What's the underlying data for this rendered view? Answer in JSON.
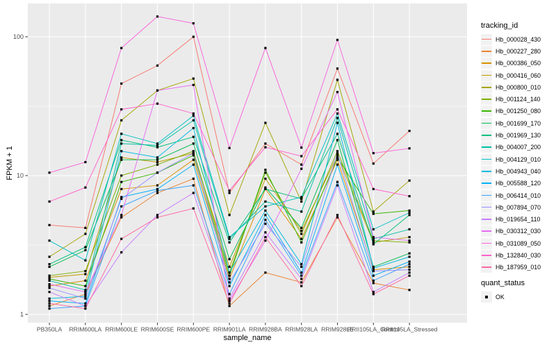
{
  "chart_data": {
    "type": "line",
    "xlabel": "sample_name",
    "ylabel": "FPKM + 1",
    "y_scale": "log10",
    "y_ticks": [
      1,
      10,
      100
    ],
    "y_minor_ticks": [
      3.1623,
      31.623
    ],
    "ylim": [
      0.87,
      174
    ],
    "grid": true,
    "panel_color": "#EBEBEB",
    "grid_color": "#FFFFFF",
    "tick_label_color": "#4D4D4D",
    "point_marker": "black-square",
    "categories": [
      "PB350LA",
      "RRIM600LA",
      "RRIM600LE",
      "RRIM600SE",
      "RRIM600PE",
      "RRIM901LA",
      "RRIM928BA",
      "RRIM928LA",
      "RRIM928LE",
      "RRII105LA_Control",
      "RRII105LA_Stressed"
    ],
    "legend": {
      "title": "tracking_id",
      "position": "right"
    },
    "legend2": {
      "title": "quant_status",
      "items": [
        {
          "label": "OK",
          "marker": "black-square"
        }
      ]
    },
    "series": [
      {
        "name": "Hb_000028_430",
        "color": "#F8766D",
        "values": [
          4.4,
          4.2,
          46,
          62,
          100,
          7.5,
          17,
          12,
          59,
          12.2,
          21
        ]
      },
      {
        "name": "Hb_000227_280",
        "color": "#EA8331",
        "values": [
          1.15,
          1.4,
          5.0,
          7.5,
          9.5,
          1.15,
          2.0,
          1.7,
          5.0,
          1.68,
          1.5
        ]
      },
      {
        "name": "Hb_000386_050",
        "color": "#D89000",
        "values": [
          1.6,
          1.75,
          8.0,
          8.5,
          13,
          1.8,
          8.0,
          3.5,
          13,
          2.1,
          2.2
        ]
      },
      {
        "name": "Hb_000416_060",
        "color": "#C09B00",
        "values": [
          1.85,
          1.95,
          13.5,
          12.5,
          14.5,
          2.2,
          9.5,
          4.0,
          14,
          3.3,
          3.6
        ]
      },
      {
        "name": "Hb_000800_010",
        "color": "#A3A500",
        "values": [
          2.6,
          3.8,
          25,
          41,
          50,
          5.2,
          24,
          6.5,
          49,
          5.5,
          9.2
        ]
      },
      {
        "name": "Hb_001124_140",
        "color": "#7CAE00",
        "values": [
          1.9,
          2.05,
          10,
          12,
          15,
          2.0,
          10.5,
          3.8,
          15,
          3.4,
          3.3
        ]
      },
      {
        "name": "Hb_001250_080",
        "color": "#39B600",
        "values": [
          1.8,
          1.6,
          9.0,
          10.5,
          14,
          1.9,
          11,
          3.3,
          13.5,
          5.3,
          5.6
        ]
      },
      {
        "name": "Hb_001699_170",
        "color": "#00BB4E",
        "values": [
          2.2,
          2.9,
          13,
          13,
          17,
          2.5,
          8.2,
          4.2,
          18,
          2.2,
          2.75
        ]
      },
      {
        "name": "Hb_001969_130",
        "color": "#00BF7D",
        "values": [
          2.3,
          3.05,
          18,
          16,
          19,
          3.3,
          8.0,
          6.8,
          20,
          3.2,
          5.2
        ]
      },
      {
        "name": "Hb_004007_200",
        "color": "#00C1A3",
        "values": [
          1.75,
          1.5,
          17,
          16.5,
          25,
          3.5,
          6.5,
          5.5,
          26,
          3.5,
          4.1
        ]
      },
      {
        "name": "Hb_004129_010",
        "color": "#00BFC4",
        "values": [
          3.4,
          2.45,
          20,
          17,
          27,
          3.6,
          6.0,
          7.0,
          28,
          4.1,
          5.4
        ]
      },
      {
        "name": "Hb_004943_040",
        "color": "#00BAE0",
        "values": [
          1.3,
          1.35,
          15,
          13.5,
          22,
          2.0,
          5.6,
          2.3,
          24,
          2.15,
          2.6
        ]
      },
      {
        "name": "Hb_005588_120",
        "color": "#00B0F6",
        "values": [
          1.25,
          1.2,
          7.0,
          8.0,
          12,
          1.6,
          5.2,
          2.0,
          12,
          1.9,
          2.4
        ]
      },
      {
        "name": "Hb_006414_010",
        "color": "#35A2FF",
        "values": [
          1.1,
          1.15,
          6.0,
          7.8,
          8.5,
          1.4,
          4.8,
          1.9,
          9.0,
          1.75,
          2.3
        ]
      },
      {
        "name": "Hb_007894_070",
        "color": "#9590FF",
        "values": [
          1.55,
          1.3,
          6.8,
          10.5,
          14.5,
          1.7,
          4.5,
          2.2,
          14.5,
          2.05,
          2.1
        ]
      },
      {
        "name": "Hb_019654_110",
        "color": "#C77CFF",
        "values": [
          1.45,
          1.15,
          2.8,
          5.2,
          7.5,
          1.3,
          3.9,
          1.8,
          8.5,
          1.45,
          2.0
        ]
      },
      {
        "name": "Hb_030312_030",
        "color": "#E76BF3",
        "values": [
          1.65,
          1.45,
          5.2,
          41,
          45,
          1.25,
          3.4,
          11.2,
          40,
          3.6,
          3.4
        ]
      },
      {
        "name": "Hb_031089_050",
        "color": "#FA62DB",
        "values": [
          10.5,
          12.5,
          83,
          140,
          125,
          15.8,
          83,
          15.9,
          95,
          14.5,
          15.7
        ]
      },
      {
        "name": "Hb_132840_030",
        "color": "#FF61CC",
        "values": [
          6.5,
          8.2,
          30,
          33,
          28,
          7.8,
          16,
          13.8,
          30,
          8.0,
          7.1
        ]
      },
      {
        "name": "Hb_187959_010",
        "color": "#FF67A4",
        "values": [
          1.2,
          1.1,
          3.5,
          5.0,
          5.8,
          1.2,
          3.6,
          1.6,
          5.2,
          1.4,
          1.9
        ]
      }
    ]
  }
}
